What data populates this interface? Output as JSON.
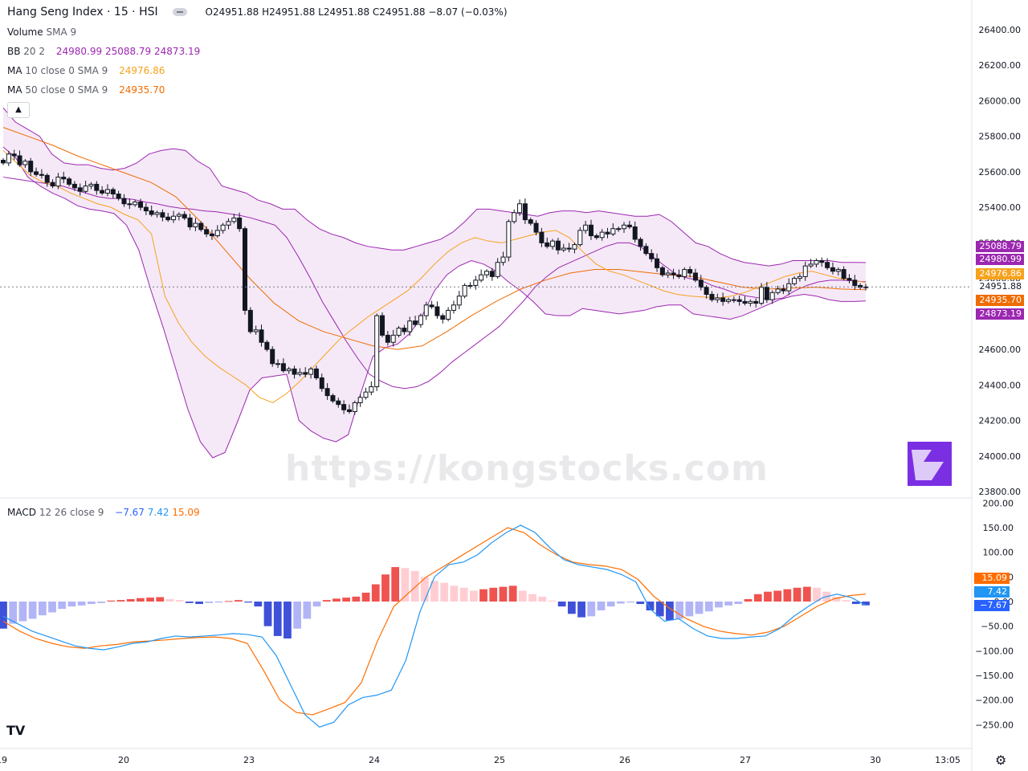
{
  "header": {
    "symbol": "Hang Seng Index · 15 · HSI",
    "ohlc": "O24951.88 H24951.88 L24951.88 C24951.88 −8.07 (−0.03%)"
  },
  "legends": {
    "volume": {
      "name": "Volume",
      "params": "SMA 9"
    },
    "bb": {
      "name": "BB",
      "params": "20 2",
      "v1": "24980.99",
      "v2": "25088.79",
      "v3": "24873.19"
    },
    "ma10": {
      "name": "MA",
      "params": "10 close 0 SMA 9",
      "value": "24976.86"
    },
    "ma50": {
      "name": "MA",
      "params": "50 close 0 SMA 9",
      "value": "24935.70"
    },
    "macd": {
      "name": "MACD",
      "params": "12 26 close 9",
      "v1": "−7.67",
      "v2": "7.42",
      "v3": "15.09"
    }
  },
  "collapse_icon": "chevron-up-icon",
  "watermark": "https://kongstocks.com",
  "tv_logo": "TV",
  "settings_icon": "gear-icon",
  "price_tags": [
    {
      "label": "25088.79",
      "color": "#9c27b0"
    },
    {
      "label": "24980.99",
      "color": "#9c27b0"
    },
    {
      "label": "24976.86",
      "color": "#f7a21b"
    },
    {
      "label": "24951.88",
      "color": "#ffffff"
    },
    {
      "label": "24935.70",
      "color": "#ef6c00"
    },
    {
      "label": "24873.19",
      "color": "#9c27b0"
    }
  ],
  "macd_tags": [
    {
      "label": "15.09",
      "color": "#ff6d00"
    },
    {
      "label": "7.42",
      "color": "#2196f3"
    },
    {
      "label": "−7.67",
      "color": "#2962ff"
    }
  ],
  "chart_data": [
    {
      "type": "candlestick",
      "title": "Hang Seng Index · 15 · HSI",
      "y_ticks": [
        "26400.00",
        "26200.00",
        "26000.00",
        "25800.00",
        "25600.00",
        "25400.00",
        "25200.00",
        "25000.00",
        "24800.00",
        "24600.00",
        "24400.00",
        "24200.00",
        "24000.00",
        "23800.00"
      ],
      "ylim": [
        23780,
        26480
      ],
      "x_ticks": [
        "19",
        "20",
        "23",
        "24",
        "25",
        "26",
        "27",
        "30",
        "13:05"
      ],
      "close": [
        25650,
        25700,
        25690,
        25640,
        25660,
        25600,
        25585,
        25580,
        25540,
        25520,
        25570,
        25560,
        25530,
        25510,
        25490,
        25520,
        25530,
        25495,
        25480,
        25500,
        25475,
        25450,
        25420,
        25415,
        25430,
        25400,
        25380,
        25360,
        25370,
        25345,
        25330,
        25350,
        25360,
        25340,
        25290,
        25310,
        25275,
        25250,
        25240,
        25270,
        25300,
        25320,
        25340,
        25280,
        24820,
        24700,
        24710,
        24640,
        24600,
        24520,
        24520,
        24480,
        24490,
        24460,
        24470,
        24460,
        24490,
        24440,
        24380,
        24340,
        24310,
        24290,
        24260,
        24250,
        24300,
        24330,
        24360,
        24390,
        24790,
        24680,
        24640,
        24680,
        24720,
        24700,
        24760,
        24740,
        24790,
        24850,
        24840,
        24790,
        24770,
        24820,
        24850,
        24900,
        24960,
        24960,
        24990,
        25020,
        25040,
        25010,
        25090,
        25120,
        25320,
        25370,
        25420,
        25330,
        25310,
        25260,
        25200,
        25180,
        25210,
        25160,
        25170,
        25165,
        25190,
        25270,
        25300,
        25240,
        25230,
        25260,
        25250,
        25280,
        25280,
        25300,
        25290,
        25220,
        25180,
        25140,
        25110,
        25060,
        25020,
        25030,
        25020,
        25010,
        25050,
        25030,
        24990,
        24950,
        24910,
        24880,
        24890,
        24870,
        24880,
        24880,
        24870,
        24860,
        24870,
        24860,
        24950,
        24880,
        24920,
        24940,
        24930,
        24970,
        25000,
        25010,
        25070,
        25080,
        25100,
        25090,
        25060,
        25040,
        25050,
        25000,
        24990,
        24960,
        24950,
        24951.88
      ],
      "bb_basis": [
        25570,
        25560,
        25550,
        25540,
        25530,
        25520,
        25500,
        25480,
        25460,
        25450,
        25450,
        25445,
        25430,
        25420,
        25405,
        25395,
        25390,
        25380,
        25375,
        25365,
        25355,
        25340,
        25320,
        25300,
        25230,
        25120,
        25000,
        24870,
        24760,
        24650,
        24550,
        24460,
        24420,
        24390,
        24380,
        24390,
        24420,
        24470,
        24530,
        24580,
        24630,
        24680,
        24730,
        24800,
        24870,
        24950,
        25010,
        25060,
        25090,
        25120,
        25150,
        25180,
        25200,
        25200,
        25175,
        25120,
        25070,
        25020,
        25000,
        24990,
        24960,
        24940,
        24915,
        24900,
        24890,
        24880,
        24890,
        24930,
        24960,
        24980,
        24990,
        24990,
        24985,
        24981
      ],
      "bb_upper": [
        25960,
        25880,
        25840,
        25800,
        25700,
        25650,
        25640,
        25640,
        25620,
        25610,
        25620,
        25650,
        25700,
        25720,
        25730,
        25720,
        25660,
        25620,
        25520,
        25500,
        25480,
        25440,
        25420,
        25390,
        25390,
        25330,
        25280,
        25250,
        25230,
        25200,
        25180,
        25170,
        25160,
        25160,
        25180,
        25200,
        25220,
        25260,
        25320,
        25390,
        25390,
        25380,
        25370,
        25360,
        25350,
        25370,
        25380,
        25380,
        25370,
        25380,
        25370,
        25360,
        25350,
        25350,
        25360,
        25320,
        25260,
        25200,
        25180,
        25140,
        25110,
        25090,
        25080,
        25070,
        25080,
        25100,
        25100,
        25100,
        25100,
        25090,
        25090,
        25089
      ],
      "bb_lower": [
        25740,
        25680,
        25570,
        25520,
        25480,
        25450,
        25410,
        25390,
        25380,
        25365,
        25300,
        25160,
        24930,
        24720,
        24490,
        24260,
        24080,
        23990,
        24020,
        24190,
        24370,
        24440,
        24450,
        24460,
        24200,
        24140,
        24100,
        24080,
        24120,
        24350,
        24560,
        24610,
        24630,
        24690,
        24790,
        24930,
        25020,
        25070,
        25100,
        25080,
        25040,
        24980,
        24930,
        24870,
        24800,
        24790,
        24790,
        24830,
        24820,
        24810,
        24800,
        24810,
        24820,
        24840,
        24850,
        24850,
        24800,
        24790,
        24780,
        24770,
        24790,
        24820,
        24850,
        24880,
        24900,
        24910,
        24900,
        24880,
        24870,
        24870,
        24873
      ],
      "ma10": [
        25720,
        25650,
        25580,
        25540,
        25520,
        25480,
        25450,
        25420,
        25400,
        25360,
        25330,
        25250,
        24900,
        24750,
        24640,
        24560,
        24500,
        24450,
        24400,
        24330,
        24300,
        24350,
        24420,
        24500,
        24580,
        24660,
        24720,
        24780,
        24830,
        24880,
        24930,
        25000,
        25080,
        25150,
        25200,
        25230,
        25210,
        25200,
        25220,
        25240,
        25260,
        25270,
        25230,
        25150,
        25080,
        25040,
        25020,
        24990,
        24960,
        24930,
        24910,
        24900,
        24895,
        24890,
        24900,
        24920,
        24950,
        24980,
        25010,
        25030,
        25040,
        25020,
        25000,
        24990,
        24977
      ],
      "ma50": [
        25850,
        25800,
        25750,
        25690,
        25640,
        25590,
        25540,
        25460,
        25320,
        25160,
        25000,
        24860,
        24760,
        24700,
        24660,
        24620,
        24600,
        24620,
        24700,
        24790,
        24870,
        24940,
        24990,
        25030,
        25050,
        25050,
        25035,
        25020,
        25010,
        24980,
        24950,
        24940,
        24945,
        24950,
        24940,
        24936
      ],
      "annotations": [
        "https://kongstocks.com"
      ]
    },
    {
      "type": "macd",
      "title": "MACD 12 26 close 9",
      "y_ticks": [
        "200.00",
        "150.00",
        "100.00",
        "50.00",
        "0.00",
        "−50.00",
        "−100.00",
        "−150.00",
        "−200.00",
        "−250.00"
      ],
      "ylim": [
        -270,
        200
      ],
      "macd": [
        -30,
        -45,
        -60,
        -70,
        -80,
        -90,
        -95,
        -98,
        -92,
        -85,
        -82,
        -75,
        -70,
        -72,
        -70,
        -68,
        -65,
        -67,
        -72,
        -110,
        -170,
        -230,
        -255,
        -245,
        -210,
        -195,
        -190,
        -180,
        -120,
        -20,
        50,
        75,
        80,
        95,
        120,
        140,
        155,
        140,
        110,
        85,
        75,
        70,
        65,
        55,
        40,
        -15,
        -40,
        -35,
        -55,
        -70,
        -75,
        -75,
        -72,
        -70,
        -55,
        -30,
        -10,
        8,
        15,
        8,
        -7.67
      ],
      "signal": [
        -40,
        -60,
        -75,
        -85,
        -92,
        -95,
        -90,
        -87,
        -82,
        -80,
        -78,
        -75,
        -73,
        -72,
        -75,
        -85,
        -140,
        -200,
        -225,
        -230,
        -218,
        -205,
        -165,
        -80,
        -10,
        20,
        50,
        70,
        90,
        110,
        130,
        150,
        140,
        115,
        95,
        80,
        75,
        72,
        65,
        45,
        10,
        -15,
        -35,
        -50,
        -60,
        -65,
        -68,
        -62,
        -50,
        -30,
        -10,
        5,
        12,
        15.09
      ],
      "histogram": [
        -55,
        -45,
        -40,
        -35,
        -28,
        -22,
        -15,
        -10,
        -8,
        -5,
        -3,
        2,
        3,
        5,
        7,
        8,
        9,
        5,
        3,
        -3,
        -5,
        -3,
        -2,
        1,
        3,
        -2,
        -10,
        -50,
        -70,
        -75,
        -55,
        -35,
        -10,
        3,
        6,
        8,
        10,
        18,
        35,
        55,
        70,
        68,
        62,
        50,
        42,
        38,
        32,
        28,
        22,
        25,
        28,
        30,
        32,
        22,
        15,
        10,
        2,
        -10,
        -25,
        -32,
        -30,
        -18,
        -10,
        -4,
        -2,
        -5,
        -18,
        -30,
        -38,
        -35,
        -30,
        -25,
        -20,
        -12,
        -8,
        -5,
        5,
        15,
        20,
        22,
        25,
        28,
        30,
        28,
        20,
        10,
        3,
        -5,
        -7.67
      ]
    }
  ]
}
